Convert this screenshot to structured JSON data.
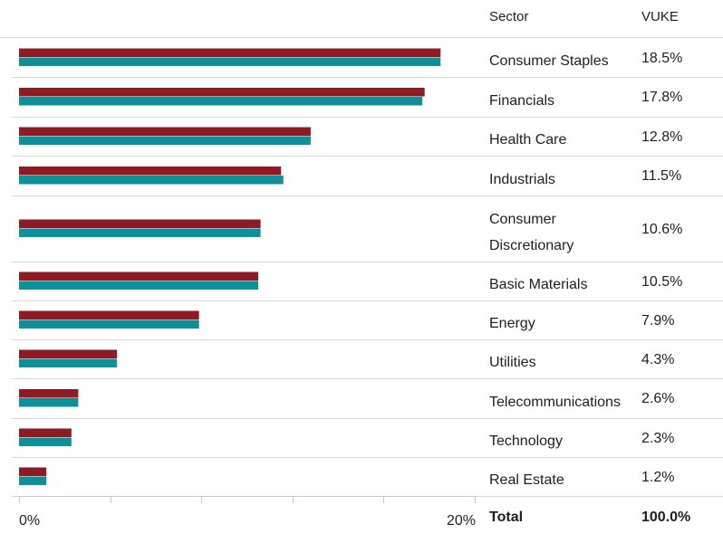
{
  "colors": {
    "series_dark": "#8e1b24",
    "series_light": "#0f9098",
    "rule": "#d6d6d6",
    "axis": "#c8c8c8",
    "text": "#1e1e1e"
  },
  "table": {
    "header_sector": "Sector",
    "header_fund": "VUKE",
    "total_label": "Total",
    "total_value": "100.0%"
  },
  "chart_data": {
    "type": "bar",
    "orientation": "horizontal",
    "categories": [
      "Consumer Staples",
      "Financials",
      "Health Care",
      "Industrials",
      "Consumer Discretionary",
      "Basic Materials",
      "Energy",
      "Utilities",
      "Telecommunications",
      "Technology",
      "Real Estate"
    ],
    "category_lines": [
      [
        "Consumer Staples"
      ],
      [
        "Financials"
      ],
      [
        "Health Care"
      ],
      [
        "Industrials"
      ],
      [
        "Consumer",
        "Discretionary"
      ],
      [
        "Basic Materials"
      ],
      [
        "Energy"
      ],
      [
        "Utilities"
      ],
      [
        "Telecommunications"
      ],
      [
        "Technology"
      ],
      [
        "Real Estate"
      ]
    ],
    "value_labels": [
      "18.5%",
      "17.8%",
      "12.8%",
      "11.5%",
      "10.6%",
      "10.5%",
      "7.9%",
      "4.3%",
      "2.6%",
      "2.3%",
      "1.2%"
    ],
    "series": [
      {
        "color": "#8e1b24",
        "values": [
          18.5,
          17.8,
          12.8,
          11.5,
          10.6,
          10.5,
          7.9,
          4.3,
          2.6,
          2.3,
          1.2
        ]
      },
      {
        "color": "#0f9098",
        "values": [
          18.5,
          17.7,
          12.8,
          11.6,
          10.6,
          10.5,
          7.9,
          4.3,
          2.6,
          2.3,
          1.2
        ]
      }
    ],
    "xlim": [
      0,
      20
    ],
    "x_tick_labels": [
      "0%",
      "20%"
    ],
    "x_minor_ticks": [
      0,
      4,
      8,
      12,
      16,
      20
    ],
    "grid": false,
    "legend": "none"
  }
}
